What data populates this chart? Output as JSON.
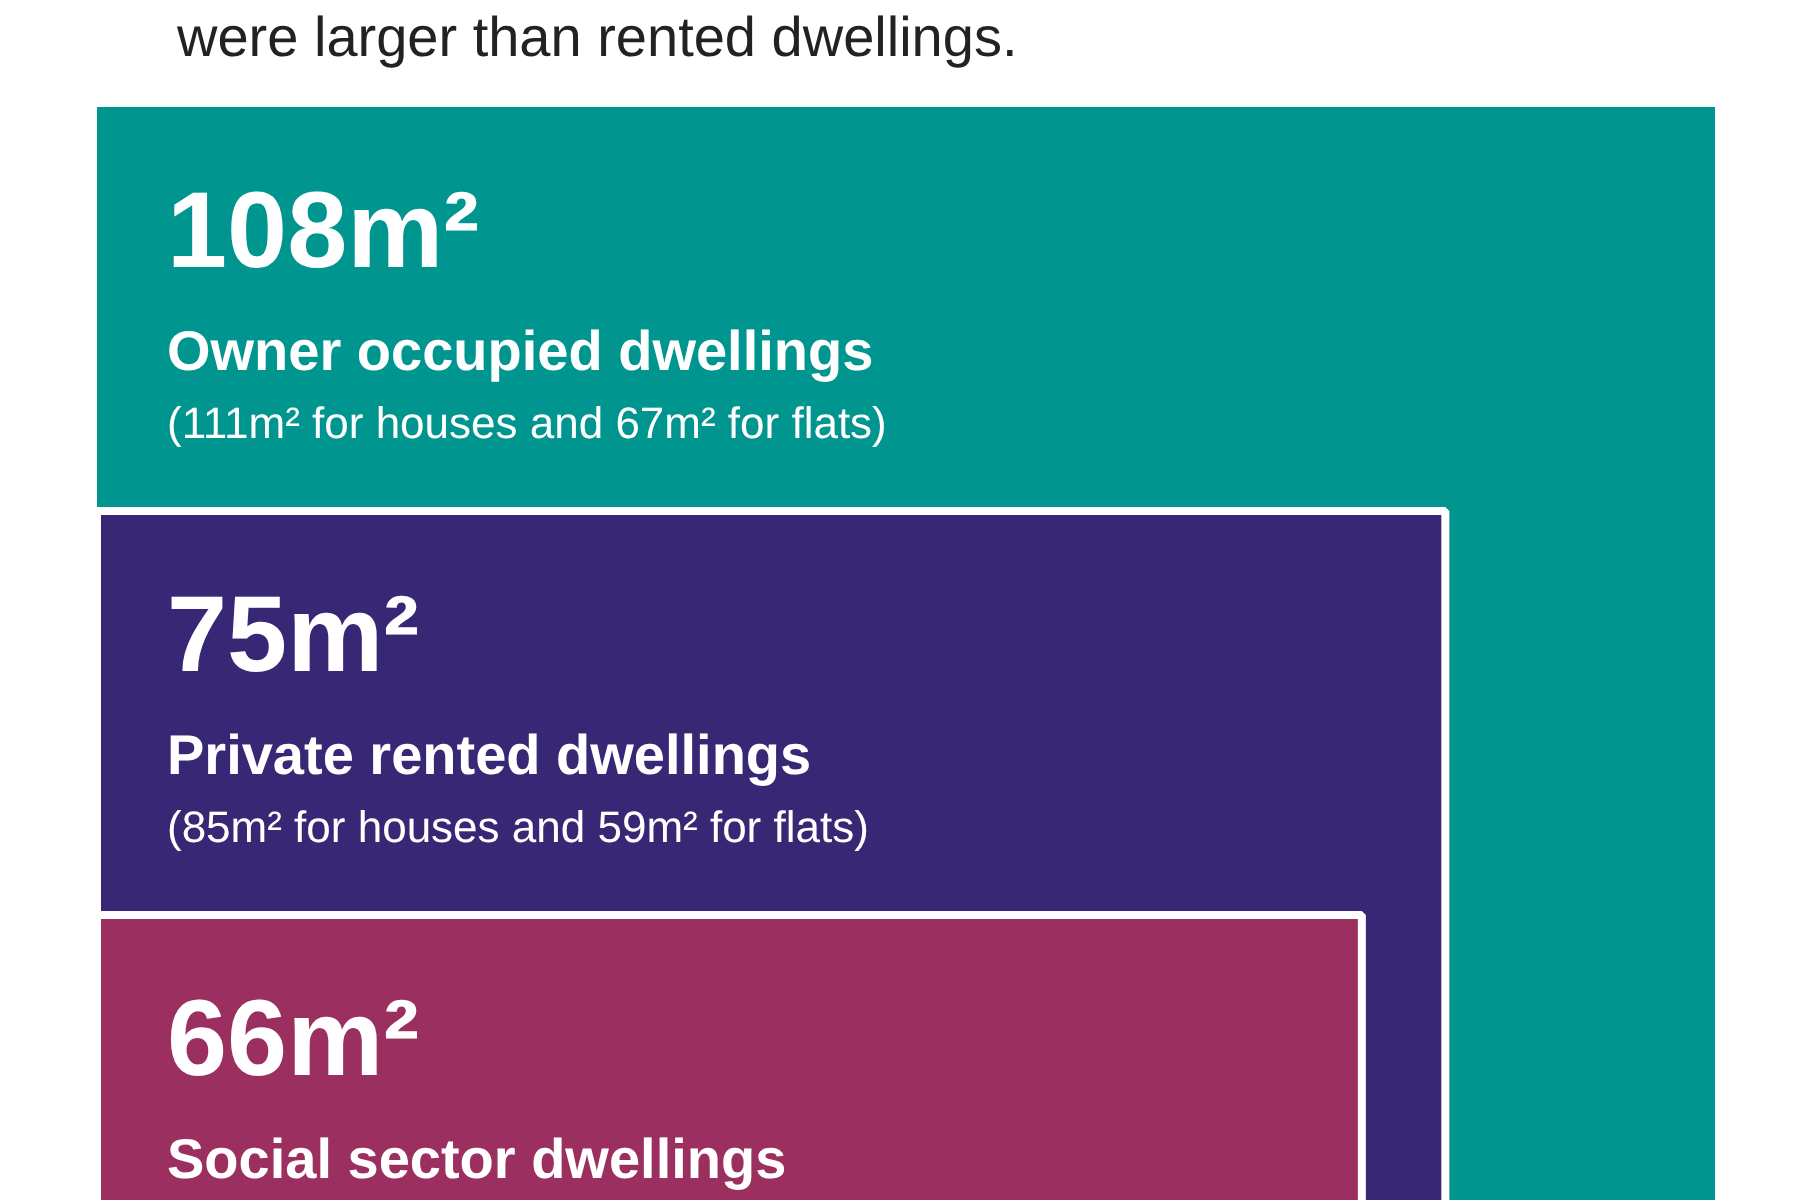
{
  "chart_data": {
    "type": "other",
    "title": "were larger than rented dwellings.",
    "categories": [
      "Owner occupied dwellings",
      "Private rented dwellings",
      "Social sector dwellings"
    ],
    "values": [
      108,
      75,
      66
    ],
    "value_labels": [
      "108m²",
      "75m²",
      "66m²"
    ],
    "colors": [
      "#00968f",
      "#372774",
      "#9b3060"
    ],
    "annotations": [
      "(111m² for houses and 67m² for flats)",
      "(85m² for houses and 59m² for flats)"
    ]
  }
}
